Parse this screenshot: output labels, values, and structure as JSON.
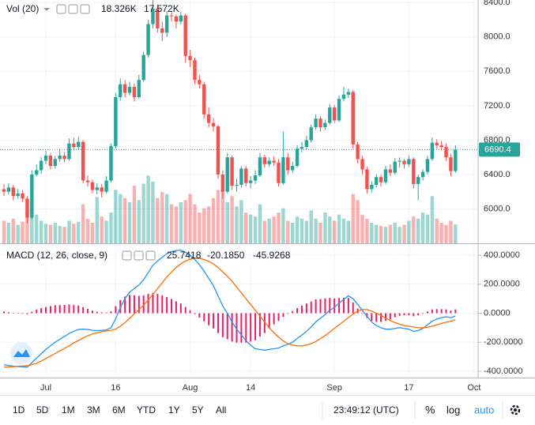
{
  "chart_data": [
    {
      "type": "candlestick",
      "categories": [
        null,
        null,
        null,
        null,
        null,
        null,
        null,
        null,
        null,
        "Jul",
        null,
        null,
        null,
        null,
        null,
        null,
        null,
        null,
        null,
        null,
        null,
        null,
        null,
        null,
        "16",
        null,
        null,
        null,
        null,
        null,
        null,
        null,
        null,
        null,
        null,
        null,
        null,
        null,
        null,
        null,
        "Aug",
        null,
        null,
        null,
        null,
        null,
        null,
        null,
        null,
        null,
        null,
        null,
        null,
        "14",
        null,
        null,
        null,
        null,
        null,
        null,
        null,
        null,
        null,
        null,
        null,
        null,
        null,
        null,
        null,
        null,
        null,
        "Sep",
        null,
        null,
        null,
        null,
        null,
        null,
        null,
        null,
        null,
        null,
        null,
        null,
        null,
        null,
        null,
        "17",
        null,
        null,
        null,
        null,
        null,
        null,
        null,
        null,
        null,
        null,
        null,
        null,
        null,
        "Oct"
      ],
      "ohlc": [
        [
          6230,
          6290,
          6150,
          6200
        ],
        [
          6200,
          6300,
          6170,
          6250
        ],
        [
          6250,
          6280,
          6100,
          6150
        ],
        [
          6150,
          6230,
          6120,
          6180
        ],
        [
          6180,
          6220,
          6080,
          6120
        ],
        [
          6120,
          6150,
          5830,
          5900
        ],
        [
          5900,
          6450,
          5880,
          6400
        ],
        [
          6400,
          6520,
          6380,
          6450
        ],
        [
          6450,
          6600,
          6410,
          6560
        ],
        [
          6560,
          6680,
          6520,
          6620
        ],
        [
          6620,
          6650,
          6460,
          6500
        ],
        [
          6500,
          6620,
          6470,
          6580
        ],
        [
          6580,
          6700,
          6550,
          6620
        ],
        [
          6620,
          6660,
          6540,
          6580
        ],
        [
          6580,
          6820,
          6560,
          6760
        ],
        [
          6760,
          6830,
          6680,
          6720
        ],
        [
          6720,
          6840,
          6690,
          6780
        ],
        [
          6780,
          6800,
          6300,
          6330
        ],
        [
          6330,
          6390,
          6260,
          6310
        ],
        [
          6310,
          6340,
          6180,
          6220
        ],
        [
          6220,
          6300,
          6170,
          6250
        ],
        [
          6250,
          6290,
          6130,
          6200
        ],
        [
          6200,
          6380,
          6180,
          6330
        ],
        [
          6330,
          6760,
          6310,
          6730
        ],
        [
          6730,
          7350,
          6700,
          7300
        ],
        [
          7300,
          7520,
          7260,
          7450
        ],
        [
          7450,
          7500,
          7300,
          7350
        ],
        [
          7350,
          7480,
          7320,
          7420
        ],
        [
          7420,
          7460,
          7250,
          7300
        ],
        [
          7300,
          7560,
          7280,
          7500
        ],
        [
          7500,
          7830,
          7480,
          7790
        ],
        [
          7790,
          8200,
          7760,
          8150
        ],
        [
          8150,
          8430,
          8100,
          8330
        ],
        [
          8330,
          8380,
          8050,
          8100
        ],
        [
          8100,
          8180,
          7950,
          8050
        ],
        [
          8050,
          8300,
          8000,
          8250
        ],
        [
          8250,
          8290,
          8180,
          8240
        ],
        [
          8240,
          8260,
          8100,
          8180
        ],
        [
          8180,
          8290,
          8150,
          8250
        ],
        [
          8250,
          8270,
          7700,
          7780
        ],
        [
          7780,
          7850,
          7650,
          7730
        ],
        [
          7730,
          7760,
          7450,
          7500
        ],
        [
          7500,
          7560,
          7400,
          7450
        ],
        [
          7450,
          7480,
          7050,
          7100
        ],
        [
          7100,
          7180,
          6950,
          7000
        ],
        [
          7000,
          7060,
          6900,
          6960
        ],
        [
          6960,
          6980,
          6350,
          6400
        ],
        [
          6400,
          6450,
          6120,
          6200
        ],
        [
          6200,
          6650,
          6180,
          6600
        ],
        [
          6600,
          6620,
          6220,
          6270
        ],
        [
          6270,
          6350,
          6200,
          6280
        ],
        [
          6280,
          6500,
          6250,
          6470
        ],
        [
          6470,
          6500,
          6260,
          6300
        ],
        [
          6300,
          6380,
          6240,
          6330
        ],
        [
          6330,
          6450,
          6290,
          6390
        ],
        [
          6390,
          6650,
          6370,
          6600
        ],
        [
          6600,
          6630,
          6480,
          6520
        ],
        [
          6520,
          6600,
          6490,
          6560
        ],
        [
          6560,
          6610,
          6500,
          6540
        ],
        [
          6540,
          6580,
          6260,
          6300
        ],
        [
          6300,
          6900,
          6280,
          6600
        ],
        [
          6600,
          6650,
          6400,
          6450
        ],
        [
          6450,
          6550,
          6420,
          6500
        ],
        [
          6500,
          6740,
          6480,
          6700
        ],
        [
          6700,
          6780,
          6660,
          6720
        ],
        [
          6720,
          6850,
          6690,
          6800
        ],
        [
          6800,
          6980,
          6770,
          6950
        ],
        [
          6950,
          7100,
          6920,
          7050
        ],
        [
          7050,
          7080,
          6900,
          6950
        ],
        [
          6950,
          7040,
          6920,
          7000
        ],
        [
          7000,
          7220,
          6980,
          7180
        ],
        [
          7180,
          7210,
          7000,
          7030
        ],
        [
          7030,
          7320,
          7010,
          7280
        ],
        [
          7280,
          7420,
          7250,
          7330
        ],
        [
          7330,
          7400,
          7290,
          7360
        ],
        [
          7360,
          7380,
          6700,
          6750
        ],
        [
          6750,
          6780,
          6530,
          6580
        ],
        [
          6580,
          6620,
          6400,
          6460
        ],
        [
          6460,
          6490,
          6180,
          6230
        ],
        [
          6230,
          6320,
          6190,
          6280
        ],
        [
          6280,
          6400,
          6250,
          6370
        ],
        [
          6370,
          6400,
          6260,
          6310
        ],
        [
          6310,
          6500,
          6290,
          6460
        ],
        [
          6460,
          6520,
          6380,
          6420
        ],
        [
          6420,
          6590,
          6400,
          6550
        ],
        [
          6550,
          6600,
          6480,
          6560
        ],
        [
          6560,
          6580,
          6470,
          6520
        ],
        [
          6520,
          6620,
          6490,
          6580
        ],
        [
          6580,
          6600,
          6240,
          6290
        ],
        [
          6290,
          6400,
          6100,
          6370
        ],
        [
          6370,
          6460,
          6330,
          6430
        ],
        [
          6430,
          6620,
          6400,
          6580
        ],
        [
          6580,
          6830,
          6560,
          6770
        ],
        [
          6770,
          6810,
          6700,
          6740
        ],
        [
          6740,
          6790,
          6680,
          6720
        ],
        [
          6720,
          6760,
          6560,
          6600
        ],
        [
          6600,
          6640,
          6380,
          6440
        ],
        [
          6440,
          6740,
          6420,
          6690.4
        ],
        null,
        null,
        null,
        null
      ],
      "up_color": "#26a69a",
      "down_color": "#ef5350",
      "ylim": [
        5600,
        8430
      ],
      "yticks": [
        {
          "value": 6000,
          "label": "6000.0"
        },
        {
          "value": 6400,
          "label": "6400.0"
        },
        {
          "value": 6800,
          "label": "6800.0"
        },
        {
          "value": 7200,
          "label": "7200.0"
        },
        {
          "value": 7600,
          "label": "7600.0"
        },
        {
          "value": 8000,
          "label": "8000.0"
        },
        {
          "value": 8400,
          "label": "8400.0"
        }
      ],
      "grid": true,
      "volume": {
        "title": "Vol (20)",
        "last_label": "18.326K",
        "ma_label": "17.572K",
        "ylim": [
          0,
          100
        ],
        "values": [
          22,
          20,
          24,
          18,
          21,
          32,
          40,
          28,
          22,
          19,
          18,
          20,
          17,
          16,
          22,
          19,
          21,
          38,
          24,
          20,
          45,
          26,
          22,
          30,
          52,
          48,
          44,
          40,
          56,
          42,
          58,
          66,
          60,
          44,
          50,
          48,
          38,
          36,
          40,
          42,
          48,
          38,
          30,
          34,
          36,
          44,
          52,
          62,
          40,
          46,
          36,
          42,
          30,
          28,
          26,
          38,
          22,
          24,
          26,
          30,
          34,
          22,
          20,
          26,
          24,
          22,
          32,
          24,
          20,
          30,
          26,
          22,
          28,
          24,
          22,
          48,
          42,
          28,
          24,
          20,
          18,
          17,
          16,
          18,
          20,
          16,
          18,
          22,
          26,
          24,
          30,
          28,
          46,
          24,
          20,
          18,
          22,
          18.326,
          null,
          null,
          null,
          null
        ]
      }
    },
    {
      "type": "macd",
      "title": "MACD (12, 26, close, 9)",
      "ylim": [
        -444,
        471
      ],
      "yticks": [
        {
          "value": -400,
          "label": "-400.0000"
        },
        {
          "value": -200,
          "label": "-200.0000"
        },
        {
          "value": 0,
          "label": "0.0000"
        },
        {
          "value": 200,
          "label": "200.0000"
        },
        {
          "value": 400,
          "label": "400.0000"
        }
      ],
      "series": [
        {
          "style": "histogram",
          "color": "#e91e63",
          "values": [
            12,
            7,
            2,
            -1,
            -4,
            -7,
            10,
            25,
            35,
            43,
            49,
            55,
            56,
            57,
            60,
            56,
            53,
            42,
            30,
            18,
            10,
            6,
            5,
            13,
            49,
            91,
            115,
            126,
            123,
            119,
            123,
            133,
            140,
            133,
            123,
            112,
            98,
            82,
            67,
            42,
            20,
            -6,
            -30,
            -56,
            -83,
            -105,
            -137,
            -165,
            -179,
            -196,
            -203,
            -203,
            -203,
            -196,
            -186,
            -161,
            -137,
            -105,
            -77,
            -53,
            -25,
            -4,
            14,
            35,
            53,
            67,
            81,
            95,
            98,
            102,
            105,
            102,
            105,
            105,
            105,
            74,
            32,
            -4,
            -32,
            -53,
            -60,
            -60,
            -53,
            -42,
            -28,
            -18,
            -14,
            -14,
            -21,
            -14,
            -4,
            12,
            25,
            28,
            28,
            26,
            18,
            25.7418,
            null,
            null,
            null,
            null
          ]
        },
        {
          "style": "line",
          "color": "#2196f3",
          "last_label": "-20.1850",
          "values": [
            -355,
            -360,
            -365,
            -368,
            -370,
            -372,
            -340,
            -310,
            -280,
            -250,
            -225,
            -200,
            -180,
            -160,
            -140,
            -125,
            -112,
            -110,
            -112,
            -118,
            -120,
            -118,
            -115,
            -100,
            -40,
            40,
            100,
            145,
            170,
            195,
            230,
            280,
            330,
            360,
            385,
            410,
            425,
            432,
            435,
            420,
            400,
            370,
            335,
            290,
            240,
            190,
            120,
            50,
            0,
            -60,
            -110,
            -150,
            -190,
            -220,
            -245,
            -250,
            -255,
            -250,
            -245,
            -240,
            -225,
            -215,
            -200,
            -175,
            -150,
            -125,
            -95,
            -60,
            -35,
            -10,
            20,
            40,
            70,
            95,
            120,
            100,
            60,
            20,
            -20,
            -60,
            -85,
            -100,
            -110,
            -110,
            -105,
            -100,
            -105,
            -110,
            -125,
            -120,
            -105,
            -80,
            -55,
            -40,
            -30,
            -25,
            -30,
            -20.185,
            null,
            null,
            null,
            null
          ]
        },
        {
          "style": "line",
          "color": "#ff6d00",
          "values": [
            -372,
            -370,
            -368,
            -366,
            -364,
            -362,
            -355,
            -345,
            -330,
            -312,
            -295,
            -278,
            -260,
            -242,
            -225,
            -205,
            -188,
            -170,
            -155,
            -143,
            -135,
            -127,
            -122,
            -118,
            -110,
            -90,
            -65,
            -35,
            -5,
            25,
            55,
            90,
            130,
            170,
            210,
            250,
            285,
            315,
            340,
            360,
            372,
            378,
            378,
            370,
            358,
            340,
            315,
            285,
            255,
            220,
            180,
            140,
            100,
            60,
            20,
            -20,
            -60,
            -100,
            -135,
            -165,
            -190,
            -210,
            -220,
            -225,
            -225,
            -220,
            -210,
            -195,
            -175,
            -155,
            -130,
            -105,
            -80,
            -55,
            -30,
            -5,
            15,
            25,
            25,
            15,
            0,
            -15,
            -35,
            -50,
            -65,
            -75,
            -85,
            -90,
            -95,
            -100,
            -100,
            -97,
            -90,
            -80,
            -70,
            -62,
            -55,
            -45.9268,
            null,
            null,
            null,
            null
          ]
        }
      ]
    }
  ],
  "toolbar": {
    "ranges": [
      "1D",
      "5D",
      "1M",
      "3M",
      "6M",
      "YTD",
      "1Y",
      "5Y",
      "All"
    ],
    "clock": "23:49:12 (UTC)",
    "percent": "%",
    "log": "log",
    "auto": "auto"
  }
}
